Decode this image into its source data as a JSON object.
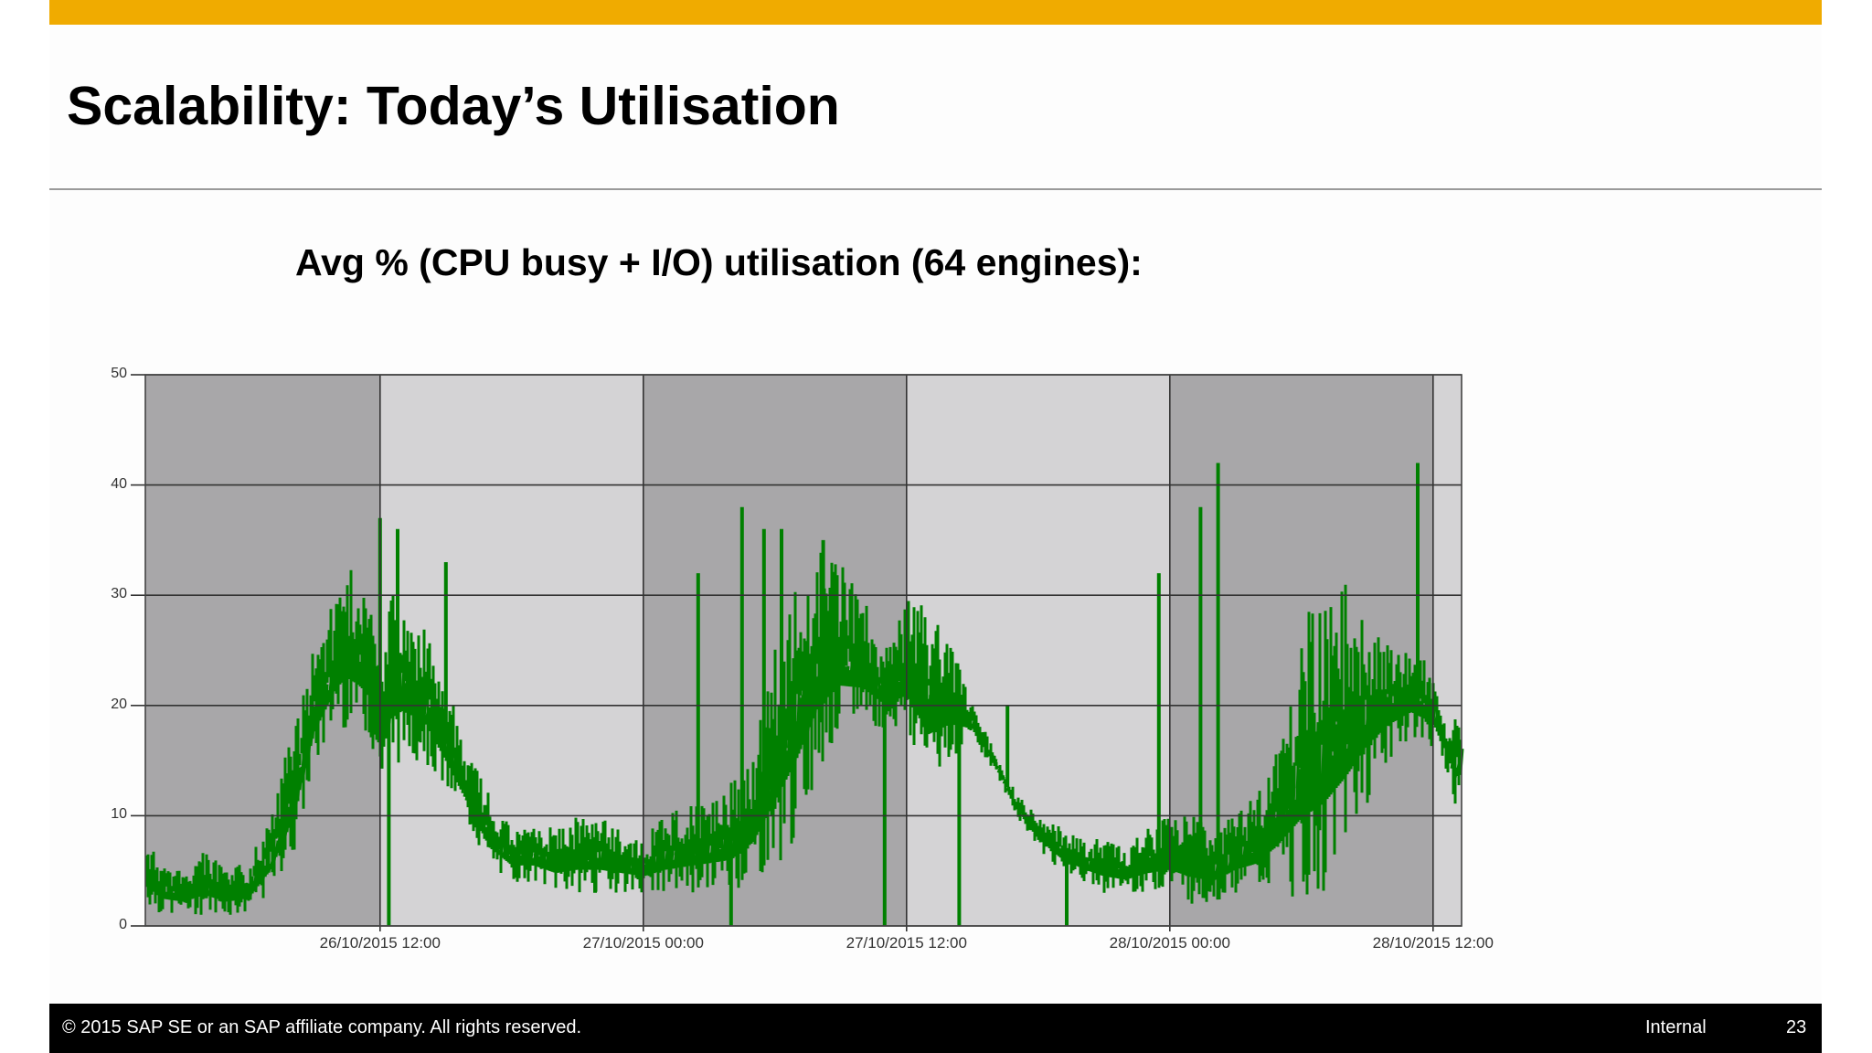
{
  "slide": {
    "title": "Scalability: Today’s Utilisation",
    "subtitle": "Avg % (CPU busy + I/O) utilisation (64 engines):",
    "footer": {
      "copyright": "© 2015 SAP SE or an SAP affiliate company. All rights reserved.",
      "classification": "Internal",
      "page_number": "23"
    },
    "colors": {
      "accent_bar": "#f0ab00",
      "footer_bg": "#000000",
      "series": "#008000",
      "band_dark": "#a8a7a9",
      "band_light": "#d4d3d5"
    }
  },
  "chart_data": {
    "type": "line",
    "title": "Avg % (CPU busy + I/O) utilisation (64 engines)",
    "xlabel": "",
    "ylabel": "",
    "ylim": [
      0,
      50
    ],
    "yticks": [
      "0",
      "10",
      "20",
      "30",
      "40",
      "50"
    ],
    "xticks": [
      "26/10/2015 12:00",
      "27/10/2015 00:00",
      "27/10/2015 12:00",
      "28/10/2015 00:00",
      "28/10/2015 12:00"
    ],
    "x_range_hours": [
      -10.7,
      49.3
    ],
    "x_origin": "26/10/2015 12:00",
    "grid": true,
    "legend": "none",
    "background_bands": [
      {
        "from_h": -10.7,
        "to_h": 0,
        "shade": "dark"
      },
      {
        "from_h": 0,
        "to_h": 12,
        "shade": "light"
      },
      {
        "from_h": 12,
        "to_h": 24,
        "shade": "dark"
      },
      {
        "from_h": 24,
        "to_h": 36,
        "shade": "light"
      },
      {
        "from_h": 36,
        "to_h": 48,
        "shade": "dark"
      },
      {
        "from_h": 48,
        "to_h": 49.3,
        "shade": "light"
      }
    ],
    "series": [
      {
        "name": "Avg % (CPU busy + I/O)",
        "description": "noisy utilisation band, hourly envelope (low/high) in hours from 26/10/2015 12:00",
        "hours": [
          -10.7,
          -10,
          -9,
          -8,
          -7,
          -6,
          -5,
          -4,
          -3,
          -2,
          -1.5,
          -1,
          -0.5,
          0,
          0.5,
          1,
          2,
          3,
          4,
          5,
          6,
          7,
          8,
          9,
          10,
          11,
          12,
          13,
          14,
          15,
          16,
          17,
          18,
          19,
          20,
          21,
          22,
          23,
          24,
          25,
          26,
          27,
          28,
          29,
          30,
          31,
          32,
          33,
          34,
          35,
          36,
          37,
          38,
          39,
          40,
          41,
          42,
          43,
          44,
          45,
          46,
          47,
          48,
          48.5,
          49,
          49.3
        ],
        "low": [
          2,
          1,
          1,
          1,
          1,
          1,
          3,
          6,
          14,
          18,
          18,
          18,
          17,
          12,
          14,
          15,
          15,
          12,
          9,
          5,
          4,
          4,
          3,
          3,
          3,
          3,
          3,
          3,
          3,
          3,
          3,
          4,
          5,
          8,
          14,
          17,
          18,
          18,
          17,
          12,
          15,
          17,
          14,
          10,
          7,
          5,
          4,
          3,
          3,
          3,
          3,
          2,
          2,
          3,
          3,
          3,
          2,
          3,
          6,
          11,
          15,
          17,
          16,
          15,
          11,
          12
        ],
        "high": [
          8,
          6,
          5,
          7,
          5,
          6,
          10,
          18,
          26,
          30,
          33,
          31,
          30,
          25,
          30,
          30,
          27,
          22,
          16,
          12,
          9,
          9,
          9,
          10,
          10,
          9,
          8,
          10,
          11,
          12,
          13,
          16,
          26,
          32,
          34,
          33,
          30,
          25,
          30,
          30,
          26,
          20,
          16,
          12,
          10,
          9,
          8,
          8,
          7,
          9,
          10,
          10,
          9,
          10,
          12,
          18,
          28,
          30,
          31,
          29,
          26,
          25,
          24,
          19,
          19,
          19
        ],
        "spikes": [
          {
            "h": 0,
            "value": 37
          },
          {
            "h": 0.8,
            "value": 36
          },
          {
            "h": 0.4,
            "value": 0
          },
          {
            "h": 3.0,
            "value": 33
          },
          {
            "h": 9.8,
            "value": 3
          },
          {
            "h": 14.5,
            "value": 32
          },
          {
            "h": 16.5,
            "value": 38
          },
          {
            "h": 16.0,
            "value": 0
          },
          {
            "h": 17.5,
            "value": 36
          },
          {
            "h": 18.3,
            "value": 36
          },
          {
            "h": 20.2,
            "value": 35
          },
          {
            "h": 23.0,
            "value": 0
          },
          {
            "h": 25.1,
            "value": 20
          },
          {
            "h": 26.4,
            "value": 0
          },
          {
            "h": 28.6,
            "value": 20
          },
          {
            "h": 31.3,
            "value": 0
          },
          {
            "h": 35.5,
            "value": 32
          },
          {
            "h": 37.4,
            "value": 38
          },
          {
            "h": 38.2,
            "value": 42
          },
          {
            "h": 47.3,
            "value": 42
          }
        ],
        "peak_max": 42,
        "min": 0
      }
    ]
  }
}
